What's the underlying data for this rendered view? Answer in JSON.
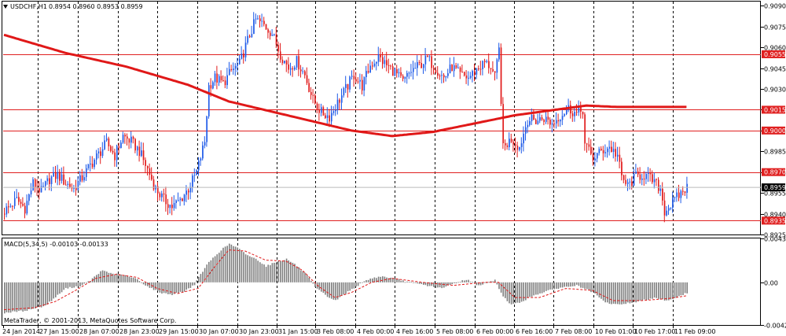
{
  "colors": {
    "bull": "#1e5ae8",
    "bear": "#e11b1b",
    "level_line": "#e02020",
    "ma_line": "#e01818",
    "grid": "#000000",
    "macd_hist": "#7f7f7f",
    "macd_signal": "#e01818",
    "axis_text": "#000000",
    "current_label_bg": "#000000"
  },
  "icons": {
    "menu": "triangle-down-icon"
  },
  "header": {
    "symbol_label": "USDCHF,H1",
    "ohlc_text": "0.8954 0.8960 0.8953 0.8959"
  },
  "macd_header": {
    "label": "MACD(5,34,5) -0.00103 -0.00133"
  },
  "copyright": "MetaTrader, © 2001-2013, MetaQuotes Software Corp.",
  "chart_data": [
    {
      "type": "candlestick",
      "title": "USDCHF,H1",
      "ylim": [
        0.8925,
        0.9093
      ],
      "y_ticks": [
        "0.9090",
        "0.9075",
        "0.9060",
        "0.9045",
        "0.9030",
        "0.9015",
        "0.9000",
        "0.8985",
        "0.8970",
        "0.8955",
        "0.8940",
        "0.8925"
      ],
      "x_tick_labels": [
        "24 Jan 2014",
        "27 Jan 15:00",
        "28 Jan 07:00",
        "28 Jan 23:00",
        "29 Jan 15:00",
        "30 Jan 07:00",
        "30 Jan 23:00",
        "31 Jan 15:00",
        "3 Feb 08:00",
        "4 Feb 00:00",
        "4 Feb 16:00",
        "5 Feb 08:00",
        "6 Feb 00:00",
        "6 Feb 16:00",
        "7 Feb 08:00",
        "10 Feb 01:00",
        "10 Feb 17:00",
        "11 Feb 09:00"
      ],
      "grid": "vertical dashed",
      "price_levels": [
        "0.9055",
        "0.9015",
        "0.9000",
        "0.8970",
        "0.8935"
      ],
      "current_price": "0.8959",
      "close_path": [
        [
          0,
          0.8942
        ],
        [
          6,
          0.895
        ],
        [
          10,
          0.8944
        ],
        [
          14,
          0.8962
        ],
        [
          18,
          0.8956
        ],
        [
          22,
          0.8965
        ],
        [
          26,
          0.8968
        ],
        [
          30,
          0.8962
        ],
        [
          34,
          0.8958
        ],
        [
          38,
          0.8966
        ],
        [
          42,
          0.8975
        ],
        [
          46,
          0.8983
        ],
        [
          50,
          0.8991
        ],
        [
          54,
          0.8982
        ],
        [
          58,
          0.8996
        ],
        [
          62,
          0.8992
        ],
        [
          66,
          0.8985
        ],
        [
          70,
          0.8972
        ],
        [
          74,
          0.8958
        ],
        [
          78,
          0.895
        ],
        [
          82,
          0.8945
        ],
        [
          86,
          0.895
        ],
        [
          90,
          0.8958
        ],
        [
          94,
          0.897
        ],
        [
          98,
          0.8992
        ],
        [
          100,
          0.9032
        ],
        [
          103,
          0.9038
        ],
        [
          107,
          0.9034
        ],
        [
          111,
          0.9043
        ],
        [
          115,
          0.9048
        ],
        [
          119,
          0.9065
        ],
        [
          123,
          0.908
        ],
        [
          127,
          0.9076
        ],
        [
          131,
          0.907
        ],
        [
          135,
          0.9055
        ],
        [
          139,
          0.9045
        ],
        [
          143,
          0.905
        ],
        [
          147,
          0.904
        ],
        [
          151,
          0.9022
        ],
        [
          155,
          0.9013
        ],
        [
          159,
          0.901
        ],
        [
          163,
          0.902
        ],
        [
          167,
          0.903
        ],
        [
          171,
          0.904
        ],
        [
          175,
          0.9032
        ],
        [
          179,
          0.9047
        ],
        [
          183,
          0.9053
        ],
        [
          187,
          0.9047
        ],
        [
          191,
          0.9042
        ],
        [
          195,
          0.9035
        ],
        [
          199,
          0.9043
        ],
        [
          203,
          0.9047
        ],
        [
          207,
          0.9052
        ],
        [
          211,
          0.9045
        ],
        [
          215,
          0.9038
        ],
        [
          219,
          0.9046
        ],
        [
          223,
          0.904
        ],
        [
          227,
          0.9038
        ],
        [
          231,
          0.9044
        ],
        [
          235,
          0.9049
        ],
        [
          238,
          0.9046
        ],
        [
          240,
          0.9038
        ],
        [
          242,
          0.9058
        ],
        [
          244,
          0.8987
        ],
        [
          248,
          0.8994
        ],
        [
          252,
          0.8988
        ],
        [
          256,
          0.9008
        ],
        [
          260,
          0.9007
        ],
        [
          264,
          0.9009
        ],
        [
          268,
          0.9005
        ],
        [
          272,
          0.9011
        ],
        [
          276,
          0.9016
        ],
        [
          279,
          0.9013
        ],
        [
          280,
          0.9012
        ],
        [
          283,
          0.9015
        ],
        [
          284,
          0.899
        ],
        [
          288,
          0.898
        ],
        [
          292,
          0.8985
        ],
        [
          296,
          0.8988
        ],
        [
          300,
          0.8982
        ],
        [
          302,
          0.8966
        ],
        [
          305,
          0.896
        ],
        [
          309,
          0.8967
        ],
        [
          313,
          0.8968
        ],
        [
          317,
          0.8964
        ],
        [
          321,
          0.8958
        ],
        [
          323,
          0.8942
        ],
        [
          327,
          0.8948
        ],
        [
          331,
          0.8955
        ],
        [
          334,
          0.8959
        ]
      ],
      "ma_path": [
        [
          0,
          0.9069
        ],
        [
          30,
          0.9056
        ],
        [
          60,
          0.9046
        ],
        [
          90,
          0.9033
        ],
        [
          110,
          0.9021
        ],
        [
          130,
          0.9014
        ],
        [
          150,
          0.9007
        ],
        [
          170,
          0.9
        ],
        [
          190,
          0.8996
        ],
        [
          210,
          0.8999
        ],
        [
          230,
          0.9005
        ],
        [
          250,
          0.9011
        ],
        [
          270,
          0.9015
        ],
        [
          285,
          0.9018
        ],
        [
          300,
          0.9017
        ],
        [
          335,
          0.9017
        ]
      ]
    },
    {
      "type": "bar",
      "title": "MACD(5,34,5) -0.00103 -0.00133",
      "ylim": [
        -0.00421,
        0.00434
      ],
      "y_ticks": [
        "0.00434",
        "0.00",
        "-0.00421"
      ],
      "hist_path": [
        [
          0,
          -0.003
        ],
        [
          10,
          -0.0028
        ],
        [
          20,
          -0.0023
        ],
        [
          30,
          -0.0006
        ],
        [
          38,
          -0.0003
        ],
        [
          42,
          0.0002
        ],
        [
          48,
          0.0012
        ],
        [
          52,
          0.0009
        ],
        [
          58,
          0.0007
        ],
        [
          64,
          0.0004
        ],
        [
          70,
          -0.0004
        ],
        [
          76,
          -0.001
        ],
        [
          82,
          -0.0012
        ],
        [
          88,
          -0.0009
        ],
        [
          93,
          -0.0002
        ],
        [
          96,
          0.0008
        ],
        [
          100,
          0.002
        ],
        [
          106,
          0.0032
        ],
        [
          110,
          0.0038
        ],
        [
          114,
          0.0034
        ],
        [
          118,
          0.0028
        ],
        [
          124,
          0.0022
        ],
        [
          128,
          0.0016
        ],
        [
          134,
          0.0021
        ],
        [
          138,
          0.0023
        ],
        [
          142,
          0.0018
        ],
        [
          148,
          0.0007
        ],
        [
          152,
          -0.0005
        ],
        [
          158,
          -0.0014
        ],
        [
          162,
          -0.0018
        ],
        [
          166,
          -0.0012
        ],
        [
          172,
          -0.0004
        ],
        [
          178,
          0.0003
        ],
        [
          184,
          0.0006
        ],
        [
          190,
          0.0004
        ],
        [
          196,
          0.0001
        ],
        [
          204,
          -0.0002
        ],
        [
          214,
          -0.0006
        ],
        [
          220,
          -0.0001
        ],
        [
          226,
          0.0003
        ],
        [
          232,
          -0.0003
        ],
        [
          240,
          0.0002
        ],
        [
          244,
          -0.0014
        ],
        [
          248,
          -0.0022
        ],
        [
          252,
          -0.002
        ],
        [
          260,
          -0.0012
        ],
        [
          270,
          -0.0006
        ],
        [
          280,
          -0.0003
        ],
        [
          288,
          -0.001
        ],
        [
          294,
          -0.002
        ],
        [
          300,
          -0.0022
        ],
        [
          310,
          -0.0019
        ],
        [
          318,
          -0.0015
        ],
        [
          324,
          -0.0018
        ],
        [
          330,
          -0.0014
        ],
        [
          334,
          -0.00103
        ]
      ],
      "signal_path": [
        [
          0,
          -0.0027
        ],
        [
          15,
          -0.0025
        ],
        [
          25,
          -0.0019
        ],
        [
          35,
          -0.0008
        ],
        [
          45,
          0.0004
        ],
        [
          55,
          0.0008
        ],
        [
          65,
          0.0005
        ],
        [
          75,
          -0.0006
        ],
        [
          85,
          -0.0011
        ],
        [
          95,
          -0.0006
        ],
        [
          103,
          0.0015
        ],
        [
          110,
          0.0032
        ],
        [
          118,
          0.0031
        ],
        [
          128,
          0.0022
        ],
        [
          138,
          0.0021
        ],
        [
          146,
          0.0012
        ],
        [
          154,
          -0.0004
        ],
        [
          162,
          -0.0015
        ],
        [
          170,
          -0.001
        ],
        [
          180,
          0.0
        ],
        [
          190,
          0.0004
        ],
        [
          205,
          0.0
        ],
        [
          220,
          -0.0003
        ],
        [
          235,
          0.0
        ],
        [
          242,
          0.0
        ],
        [
          250,
          -0.0015
        ],
        [
          262,
          -0.0015
        ],
        [
          275,
          -0.0006
        ],
        [
          288,
          -0.0008
        ],
        [
          298,
          -0.0018
        ],
        [
          312,
          -0.0018
        ],
        [
          325,
          -0.0016
        ],
        [
          334,
          -0.00133
        ]
      ]
    }
  ]
}
